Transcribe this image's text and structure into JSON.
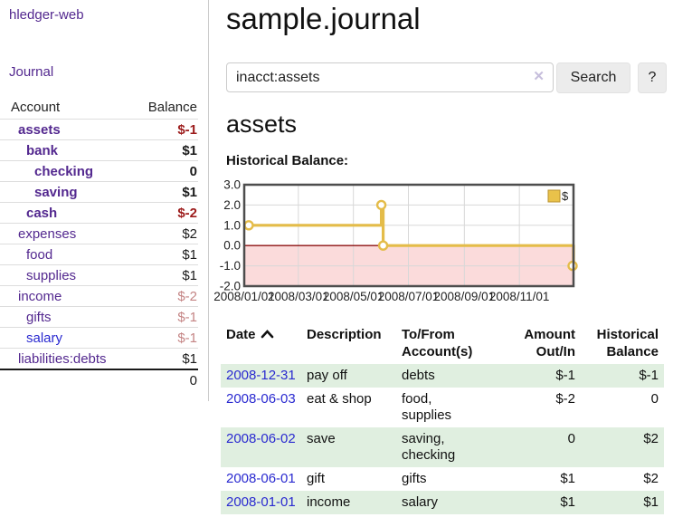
{
  "app": {
    "title": "hledger-web",
    "nav_journal": "Journal"
  },
  "sidebar": {
    "header": {
      "account": "Account",
      "balance": "Balance"
    },
    "accounts": [
      {
        "name": "assets",
        "level": 1,
        "bold": true,
        "balance": "$-1",
        "value_class": "neg-strong",
        "name_class": ""
      },
      {
        "name": "bank",
        "level": 2,
        "bold": true,
        "balance": "$1",
        "value_class": "",
        "name_class": ""
      },
      {
        "name": "checking",
        "level": 3,
        "bold": true,
        "balance": "0",
        "value_class": "",
        "name_class": ""
      },
      {
        "name": "saving",
        "level": 3,
        "bold": true,
        "balance": "$1",
        "value_class": "",
        "name_class": ""
      },
      {
        "name": "cash",
        "level": 2,
        "bold": true,
        "balance": "$-2",
        "value_class": "neg-strong",
        "name_class": ""
      },
      {
        "name": "expenses",
        "level": 1,
        "bold": false,
        "balance": "$2",
        "value_class": "",
        "name_class": ""
      },
      {
        "name": "food",
        "level": 2,
        "bold": false,
        "balance": "$1",
        "value_class": "",
        "name_class": ""
      },
      {
        "name": "supplies",
        "level": 2,
        "bold": false,
        "balance": "$1",
        "value_class": "",
        "name_class": ""
      },
      {
        "name": "income",
        "level": 1,
        "bold": false,
        "balance": "$-2",
        "value_class": "neg-muted",
        "name_class": ""
      },
      {
        "name": "gifts",
        "level": 2,
        "bold": false,
        "balance": "$-1",
        "value_class": "neg-muted",
        "name_class": ""
      },
      {
        "name": "salary",
        "level": 2,
        "bold": false,
        "balance": "$-1",
        "value_class": "neg-muted",
        "name_class": "blue"
      },
      {
        "name": "liabilities:debts",
        "level": 1,
        "bold": false,
        "balance": "$1",
        "value_class": "",
        "name_class": ""
      }
    ],
    "total": "0"
  },
  "header": {
    "title": "sample.journal"
  },
  "search": {
    "value": "inacct:assets",
    "clear_icon": "✕",
    "button_label": "Search",
    "help_label": "?"
  },
  "account_page": {
    "heading": "assets",
    "chart_label": "Historical Balance:"
  },
  "chart_data": {
    "type": "line",
    "title": "Historical Balance",
    "step": true,
    "series": [
      {
        "name": "$",
        "points": [
          [
            "2008-01-01",
            1
          ],
          [
            "2008-06-01",
            2
          ],
          [
            "2008-06-03",
            0
          ],
          [
            "2008-12-31",
            -1
          ]
        ]
      }
    ],
    "ylim": [
      -2,
      3
    ],
    "yticks": [
      "3.0",
      "2.0",
      "1.0",
      "0.0",
      "-1.0",
      "-2.0"
    ],
    "xticks": [
      "2008/01/01",
      "2008/03/01",
      "2008/05/01",
      "2008/07/01",
      "2008/09/01",
      "2008/11/01"
    ],
    "x_range": [
      "2008-01-01",
      "2008-12-31"
    ],
    "legend": "$",
    "legend_position": "top-right",
    "grid": true,
    "colors": {
      "line": "#e4bc49",
      "marker_fill": "#ffffff",
      "legend_fill": "#e9c24a",
      "legend_border": "#ba9330",
      "negative_region": "#fbdbdb",
      "zero_line": "#8c1010",
      "plot_border": "#4d4d4d",
      "gridline": "#d8d8d8"
    }
  },
  "register": {
    "columns": [
      {
        "line1": "Date",
        "line2": "",
        "sorted": "asc"
      },
      {
        "line1": "Description",
        "line2": ""
      },
      {
        "line1": "To/From",
        "line2": "Account(s)"
      },
      {
        "line1": "Amount",
        "line2": "Out/In"
      },
      {
        "line1": "Historical",
        "line2": "Balance"
      }
    ],
    "rows": [
      {
        "date": "2008-12-31",
        "description": "pay off",
        "accounts": "debts",
        "amount": "$-1",
        "amount_neg": true,
        "balance": "$-1",
        "balance_neg": true
      },
      {
        "date": "2008-06-03",
        "description": "eat & shop",
        "accounts": "food, supplies",
        "amount": "$-2",
        "amount_neg": true,
        "balance": "0",
        "balance_neg": false
      },
      {
        "date": "2008-06-02",
        "description": "save",
        "accounts": "saving,\nchecking",
        "amount": "0",
        "amount_neg": false,
        "balance": "$2",
        "balance_neg": false
      },
      {
        "date": "2008-06-01",
        "description": "gift",
        "accounts": "gifts",
        "amount": "$1",
        "amount_neg": false,
        "balance": "$2",
        "balance_neg": false
      },
      {
        "date": "2008-01-01",
        "description": "income",
        "accounts": "salary",
        "amount": "$1",
        "amount_neg": false,
        "balance": "$1",
        "balance_neg": false
      }
    ]
  }
}
